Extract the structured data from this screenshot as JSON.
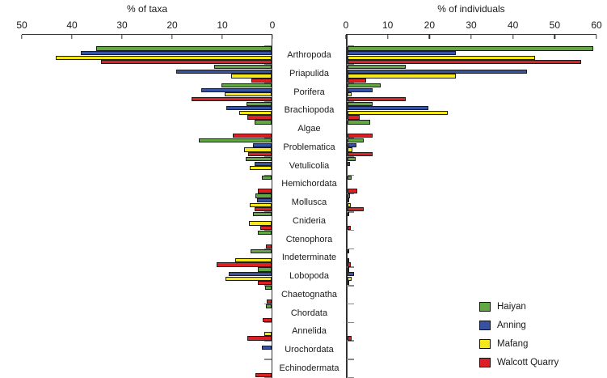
{
  "chart_data": {
    "type": "bar",
    "orientation": "horizontal-mirrored",
    "grid": false,
    "legend_position": "bottom-right",
    "categories": [
      "Arthropoda",
      "Priapulida",
      "Porifera",
      "Brachiopoda",
      "Algae",
      "Problematica",
      "Vetulicolia",
      "Hemichordata",
      "Mollusca",
      "Cnideria",
      "Ctenophora",
      "Indeterminate",
      "Lobopoda",
      "Chaetognatha",
      "Chordata",
      "Annelida",
      "Urochordata",
      "Echinodermata"
    ],
    "series_names": [
      "Haiyan",
      "Anning",
      "Mafang",
      "Walcott Quarry"
    ],
    "colors": {
      "Haiyan": "#62A744",
      "Anning": "#3752A3",
      "Mafang": "#F5E71A",
      "Walcott Quarry": "#DD1F26"
    },
    "left": {
      "title": "% of taxa",
      "axis_direction": "right-to-left",
      "ticks": [
        50,
        40,
        30,
        20,
        10,
        0
      ],
      "max": 50,
      "series": [
        {
          "name": "Haiyan",
          "values": [
            35,
            11.5,
            10,
            5,
            3.4,
            14.5,
            5.2,
            2,
            3.2,
            3.7,
            2.7,
            4.2,
            2.7,
            1.3,
            1.2,
            0,
            0,
            0
          ]
        },
        {
          "name": "Anning",
          "values": [
            38,
            19,
            14,
            9,
            0,
            3.7,
            3.4,
            0,
            2.9,
            0,
            0,
            0,
            8.5,
            0,
            0,
            0,
            2,
            0
          ]
        },
        {
          "name": "Mafang",
          "values": [
            43,
            8,
            9.3,
            6.4,
            0,
            5.5,
            4.4,
            0,
            4.4,
            4.5,
            0,
            7.3,
            9.2,
            0,
            0,
            1.5,
            0,
            0
          ]
        },
        {
          "name": "Walcott Quarry",
          "values": [
            34,
            4,
            16,
            4.9,
            7.7,
            4.7,
            0,
            2.7,
            3.4,
            2.3,
            1.1,
            11,
            2.7,
            0.9,
            1.7,
            4.8,
            0,
            3.3
          ]
        }
      ]
    },
    "right": {
      "title": "% of individuals",
      "axis_direction": "left-to-right",
      "ticks": [
        0,
        10,
        20,
        30,
        40,
        50,
        60
      ],
      "max": 60,
      "series": [
        {
          "name": "Haiyan",
          "values": [
            59,
            14,
            8,
            6,
            5.5,
            4,
            2,
            1,
            0.7,
            0.5,
            0,
            0.3,
            0.3,
            0,
            0,
            0,
            0,
            0
          ]
        },
        {
          "name": "Anning",
          "values": [
            26,
            43,
            6,
            19.5,
            0,
            2.3,
            0.7,
            0,
            0.3,
            0,
            0,
            0,
            1.7,
            0,
            0,
            0,
            0,
            0
          ]
        },
        {
          "name": "Mafang",
          "values": [
            45,
            26,
            1,
            24,
            0,
            1.2,
            0,
            0,
            0.9,
            0,
            0,
            0.3,
            1,
            0,
            0,
            0,
            0,
            0
          ]
        },
        {
          "name": "Walcott Quarry",
          "values": [
            56,
            4.5,
            14,
            3,
            6,
            6,
            0,
            2.5,
            4,
            0.8,
            0,
            0.8,
            0.3,
            0,
            0,
            1,
            0,
            0
          ]
        }
      ]
    },
    "legend": [
      "Haiyan",
      "Anning",
      "Mafang",
      "Walcott Quarry"
    ]
  }
}
